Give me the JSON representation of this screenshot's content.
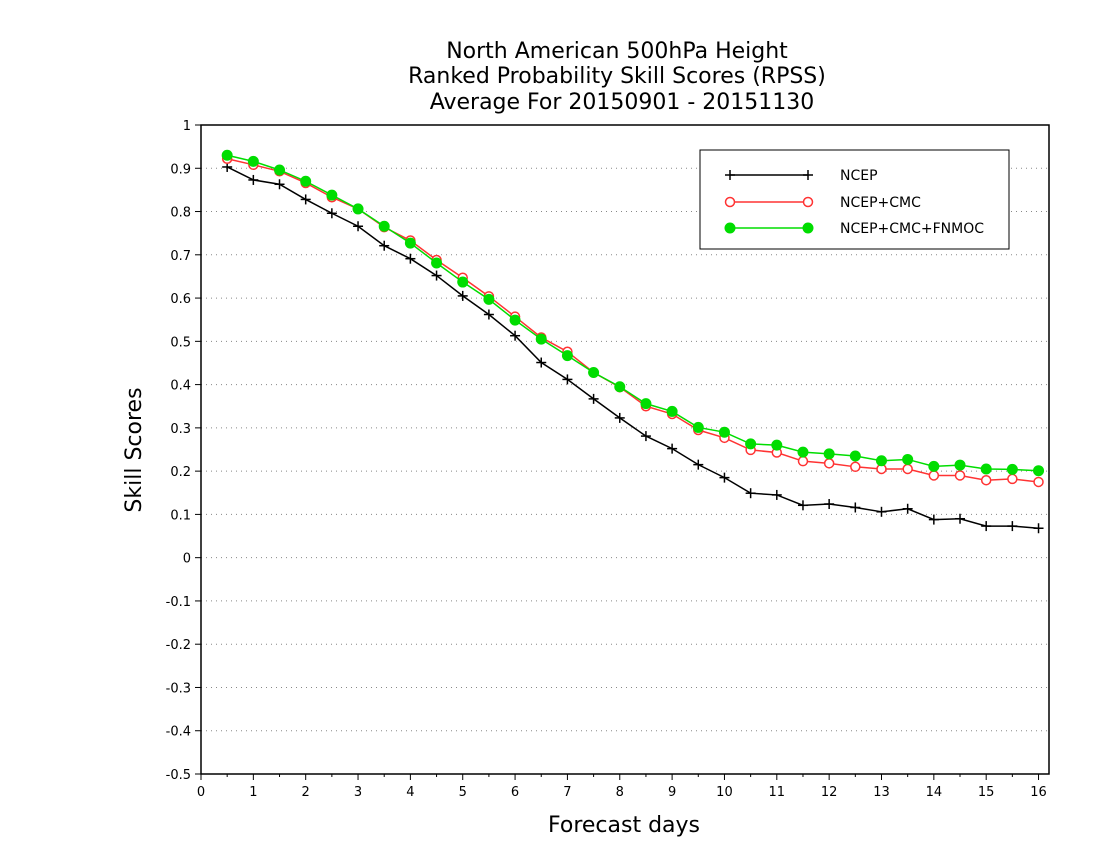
{
  "chart_data": {
    "type": "line",
    "title": [
      "North American 500hPa Height",
      "Ranked Probability Skill Scores (RPSS)",
      "Average For 20150901 - 20151130"
    ],
    "xlabel": "Forecast days",
    "ylabel": "Skill Scores",
    "xlim": [
      0,
      16.2
    ],
    "ylim": [
      -0.5,
      1
    ],
    "xticks": [
      "0",
      "1",
      "2",
      "3",
      "4",
      "5",
      "6",
      "7",
      "8",
      "9",
      "10",
      "11",
      "12",
      "13",
      "14",
      "15",
      "16"
    ],
    "yticks": [
      "1",
      "0.9",
      "0.8",
      "0.7",
      "0.6",
      "0.5",
      "0.4",
      "0.3",
      "0.2",
      "0.1",
      "0",
      "-0.1",
      "-0.2",
      "-0.3",
      "-0.4",
      "-0.5"
    ],
    "grid": "horizontal dotted",
    "legend_position": "top-right",
    "x": [
      0.5,
      1,
      1.5,
      2,
      2.5,
      3,
      3.5,
      4,
      4.5,
      5,
      5.5,
      6,
      6.5,
      7,
      7.5,
      8,
      8.5,
      9,
      9.5,
      10,
      10.5,
      11,
      11.5,
      12,
      12.5,
      13,
      13.5,
      14,
      14.5,
      15,
      15.5,
      16
    ],
    "series": [
      {
        "name": "NCEP",
        "color": "#000000",
        "marker": "plus",
        "values": [
          0.903,
          0.873,
          0.863,
          0.828,
          0.796,
          0.766,
          0.721,
          0.691,
          0.652,
          0.605,
          0.562,
          0.513,
          0.451,
          0.412,
          0.367,
          0.323,
          0.281,
          0.252,
          0.215,
          0.185,
          0.149,
          0.145,
          0.121,
          0.124,
          0.116,
          0.106,
          0.113,
          0.088,
          0.09,
          0.073,
          0.073,
          0.068
        ]
      },
      {
        "name": "NCEP+CMC",
        "color": "#ff3333",
        "marker": "open-circle",
        "values": [
          0.922,
          0.908,
          0.893,
          0.866,
          0.833,
          0.806,
          0.764,
          0.733,
          0.688,
          0.647,
          0.604,
          0.557,
          0.509,
          0.476,
          0.428,
          0.394,
          0.35,
          0.332,
          0.295,
          0.277,
          0.249,
          0.243,
          0.223,
          0.218,
          0.21,
          0.205,
          0.205,
          0.19,
          0.19,
          0.179,
          0.182,
          0.175
        ]
      },
      {
        "name": "NCEP+CMC+FNMOC",
        "color": "#00dd00",
        "marker": "filled-circle",
        "values": [
          0.93,
          0.916,
          0.896,
          0.87,
          0.838,
          0.806,
          0.766,
          0.727,
          0.681,
          0.637,
          0.597,
          0.549,
          0.505,
          0.467,
          0.428,
          0.395,
          0.356,
          0.338,
          0.301,
          0.29,
          0.263,
          0.26,
          0.244,
          0.24,
          0.235,
          0.224,
          0.227,
          0.211,
          0.214,
          0.205,
          0.204,
          0.201
        ]
      }
    ]
  }
}
